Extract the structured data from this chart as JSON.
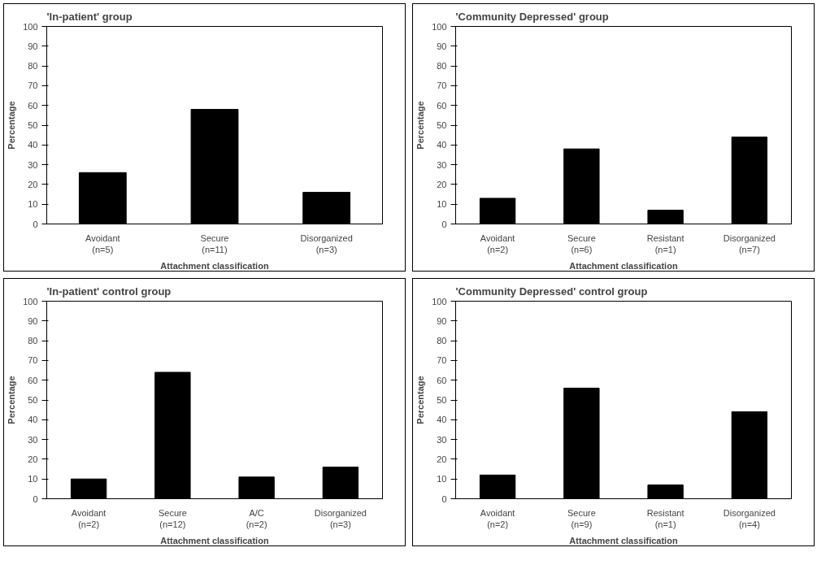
{
  "chart_data": [
    {
      "type": "bar",
      "title": "'In-patient' group",
      "categories": [
        "Avoidant\n(n=5)",
        "Secure\n(n=11)",
        "Disorganized\n(n=3)"
      ],
      "values": [
        26,
        58,
        16
      ],
      "color": "#000000",
      "ylim": [
        0,
        100
      ],
      "yticks": [
        0,
        10,
        20,
        30,
        40,
        50,
        60,
        70,
        80,
        90,
        100
      ],
      "xlabel": "Attachment classification",
      "ylabel": "Percentage",
      "grid": false
    },
    {
      "type": "bar",
      "title": "'Community Depressed' group",
      "categories": [
        "Avoidant\n(n=2)",
        "Secure\n(n=6)",
        "Resistant\n(n=1)",
        "Disorganized\n(n=7)"
      ],
      "values": [
        13,
        38,
        7,
        44
      ],
      "color": "#000000",
      "ylim": [
        0,
        100
      ],
      "yticks": [
        0,
        10,
        20,
        30,
        40,
        50,
        60,
        70,
        80,
        90,
        100
      ],
      "xlabel": "Attachment classification",
      "ylabel": "Percentage",
      "grid": false
    },
    {
      "type": "bar",
      "title": "'In-patient' control group",
      "categories": [
        "Avoidant\n(n=2)",
        "Secure\n(n=12)",
        "A/C\n(n=2)",
        "Disorganized\n(n=3)"
      ],
      "values": [
        10,
        64,
        11,
        16
      ],
      "color": "#000000",
      "ylim": [
        0,
        100
      ],
      "yticks": [
        0,
        10,
        20,
        30,
        40,
        50,
        60,
        70,
        80,
        90,
        100
      ],
      "xlabel": "Attachment classification",
      "ylabel": "Percentage",
      "grid": false
    },
    {
      "type": "bar",
      "title": "'Community Depressed' control group",
      "categories": [
        "Avoidant\n(n=2)",
        "Secure\n(n=9)",
        "Resistant\n(n=1)",
        "Disorganized\n(n=4)"
      ],
      "values": [
        12,
        56,
        7,
        44
      ],
      "color": "#000000",
      "ylim": [
        0,
        100
      ],
      "yticks": [
        0,
        10,
        20,
        30,
        40,
        50,
        60,
        70,
        80,
        90,
        100
      ],
      "xlabel": "Attachment classification",
      "ylabel": "Percentage",
      "grid": false
    }
  ]
}
